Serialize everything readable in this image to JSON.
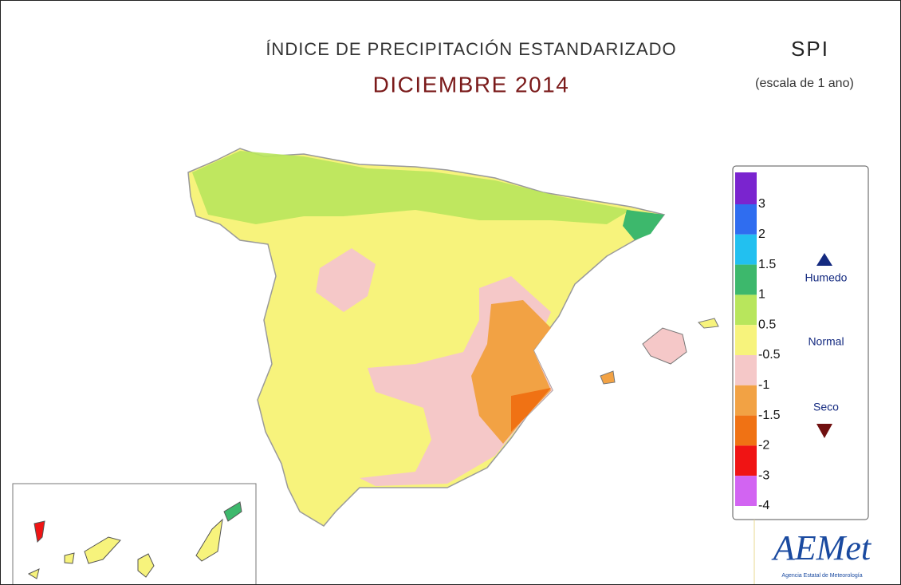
{
  "header": {
    "title": "ÍNDICE DE PRECIPITACIÓN ESTANDARIZADO",
    "subtitle": "DICIEMBRE 2014",
    "index": "SPI",
    "scale": "(escala de 1 ano)"
  },
  "legend": {
    "labels": [
      3,
      2,
      1.5,
      1,
      0.5,
      -0.5,
      -1,
      -1.5,
      -2,
      -3,
      -4
    ],
    "colors": [
      "#7a24cf",
      "#2f6df0",
      "#22c0f0",
      "#3db86c",
      "#b8e65c",
      "#f7f37c",
      "#f5c8c8",
      "#f2a244",
      "#f07214",
      "#f01414",
      "#d264f2"
    ],
    "wet": "Humedo",
    "normal": "Normal",
    "dry": "Seco"
  },
  "logo": {
    "name": "AEMet",
    "agency": "Agencia Estatal de Meteorología"
  }
}
